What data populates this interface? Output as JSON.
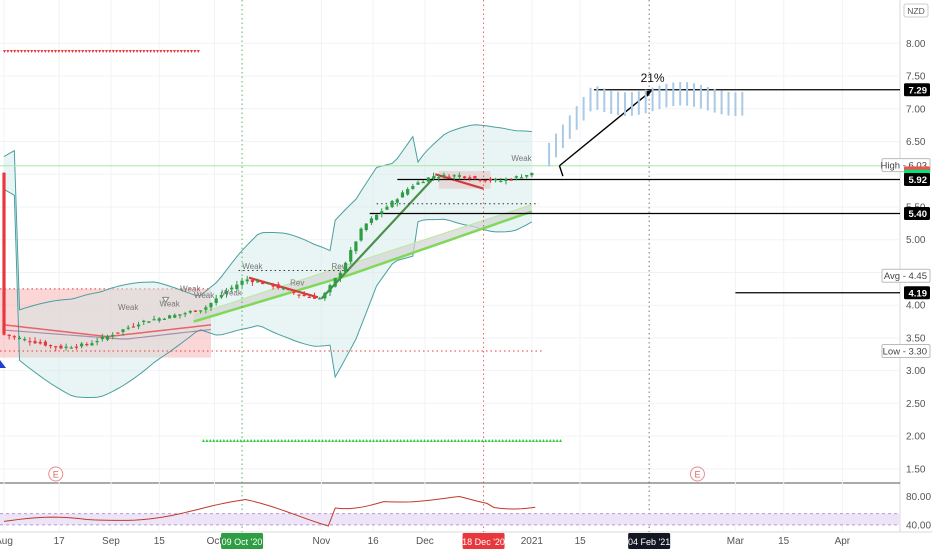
{
  "chart_data": {
    "type": "candlestick",
    "currency": "NZD",
    "y_ticks": [
      1.5,
      2.0,
      2.5,
      3.0,
      3.5,
      4.0,
      4.5,
      5.0,
      5.5,
      6.0,
      6.5,
      7.0,
      7.5,
      8.0
    ],
    "ylim": [
      1.3,
      8.6
    ],
    "x_ticks": [
      {
        "label": "Aug",
        "day": 0
      },
      {
        "label": "17",
        "day": 16
      },
      {
        "label": "Sep",
        "day": 31
      },
      {
        "label": "15",
        "day": 45
      },
      {
        "label": "Oct",
        "day": 61
      },
      {
        "label": "Nov",
        "day": 92
      },
      {
        "label": "16",
        "day": 107
      },
      {
        "label": "Dec",
        "day": 122
      },
      {
        "label": "2021",
        "day": 153
      },
      {
        "label": "15",
        "day": 167
      },
      {
        "label": "Mar",
        "day": 212
      },
      {
        "label": "15",
        "day": 226
      },
      {
        "label": "Apr",
        "day": 243
      }
    ],
    "date_markers": [
      {
        "label": "09 Oct '20",
        "day": 69,
        "bg": "#2e9e44"
      },
      {
        "label": "18 Dec '20",
        "day": 139,
        "bg": "#e8383d"
      },
      {
        "label": "04 Feb '21",
        "day": 187,
        "bg": "#131722"
      }
    ],
    "price_labels": [
      {
        "text": "7.29",
        "value": 7.29,
        "bg": "#000000",
        "fg": "#ffffff"
      },
      {
        "text": "High - 6.03",
        "value": 6.14,
        "bg": "#ffffff",
        "fg": "#444444",
        "border": "#bbbbbb"
      },
      {
        "text": "6.02",
        "value": 6.02,
        "bg": "#ef5350",
        "fg": "#ffffff"
      },
      {
        "text": "5.97",
        "value": 5.97,
        "bg": "#00e676",
        "fg": "#0b6b2b"
      },
      {
        "text": "5.92",
        "value": 5.92,
        "bg": "#000000",
        "fg": "#ffffff"
      },
      {
        "text": "5.40",
        "value": 5.4,
        "bg": "#000000",
        "fg": "#ffffff"
      },
      {
        "text": "Avg - 4.45",
        "value": 4.45,
        "bg": "#ffffff",
        "fg": "#444444",
        "border": "#bbbbbb"
      },
      {
        "text": "4.19",
        "value": 4.19,
        "bg": "#000000",
        "fg": "#ffffff"
      },
      {
        "text": "Low - 3.30",
        "value": 3.3,
        "bg": "#ffffff",
        "fg": "#444444",
        "border": "#bbbbbb"
      }
    ],
    "projection_percent": "21%",
    "annotations": [
      "Weak",
      "Weak",
      "Weak",
      "Weak",
      "Weak",
      "Weak",
      "Weak",
      "Rev",
      "Rev"
    ],
    "event_markers": [
      "E",
      "E"
    ],
    "oscillator": {
      "ticks": [
        40.0,
        80.0
      ],
      "ylim": [
        30,
        95
      ]
    },
    "colors": {
      "up": "#2e9e44",
      "down": "#e8383d",
      "band": "#4a9fa0",
      "support": "#7ed957"
    }
  }
}
